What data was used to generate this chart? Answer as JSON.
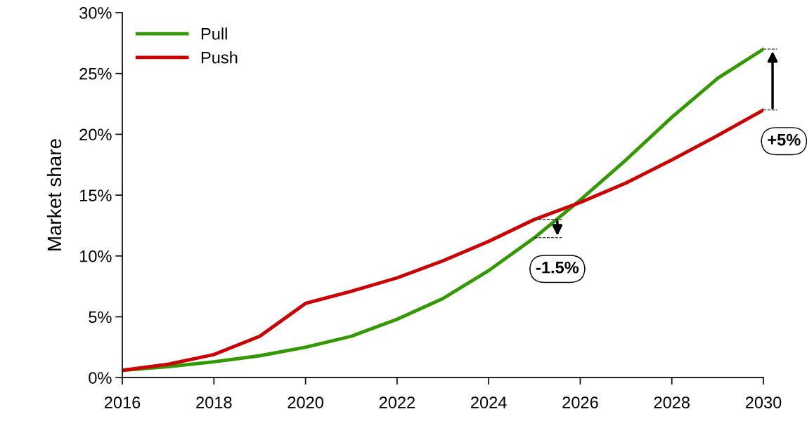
{
  "chart_data": {
    "type": "line",
    "ylabel": "Market share",
    "x": [
      2016,
      2017,
      2018,
      2019,
      2020,
      2021,
      2022,
      2023,
      2024,
      2025,
      2026,
      2027,
      2028,
      2029,
      2030
    ],
    "series": [
      {
        "name": "Pull",
        "color": "#339900",
        "values": [
          0.6,
          0.9,
          1.3,
          1.8,
          2.5,
          3.4,
          4.8,
          6.5,
          8.8,
          11.5,
          14.6,
          17.9,
          21.4,
          24.6,
          27.0
        ]
      },
      {
        "name": "Push",
        "color": "#cc0000",
        "values": [
          0.6,
          1.1,
          1.9,
          3.4,
          6.1,
          7.1,
          8.2,
          9.6,
          11.2,
          13.0,
          14.4,
          16.0,
          17.9,
          19.9,
          22.0
        ]
      }
    ],
    "xlim": [
      2016,
      2030
    ],
    "xticks": [
      2016,
      2018,
      2020,
      2022,
      2024,
      2026,
      2028,
      2030
    ],
    "ylim": [
      0,
      30
    ],
    "yticks": [
      {
        "value": 0,
        "label": "0%"
      },
      {
        "value": 5,
        "label": "5%"
      },
      {
        "value": 10,
        "label": "10%"
      },
      {
        "value": 15,
        "label": "15%"
      },
      {
        "value": 20,
        "label": "20%"
      },
      {
        "value": 25,
        "label": "25%"
      },
      {
        "value": 30,
        "label": "30%"
      }
    ],
    "annotations": [
      "-1.5%",
      "+5%"
    ],
    "grid": false,
    "legend": "top left",
    "marker": "none",
    "line_style": "solid"
  }
}
